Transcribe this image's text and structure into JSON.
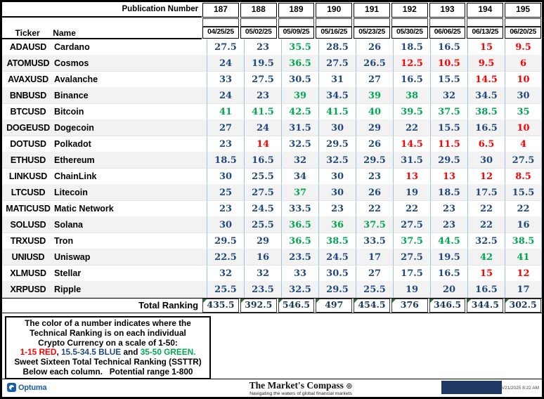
{
  "header": {
    "publication_label": "Publication Number",
    "ticker_label": "Ticker",
    "name_label": "Name",
    "publication_numbers": [
      "187",
      "188",
      "189",
      "190",
      "191",
      "192",
      "193",
      "194",
      "195"
    ],
    "dates": [
      "04/25/25",
      "05/02/25",
      "05/09/25",
      "05/16/25",
      "05/23/25",
      "05/30/25",
      "06/06/25",
      "06/13/25",
      "06/20/25"
    ]
  },
  "colors": {
    "red": "#FE0000",
    "blue": "#1F497D",
    "green": "#00A651",
    "total_navy": "#17375E"
  },
  "rows": [
    {
      "ticker": "ADAUSD",
      "name": "Cardano",
      "values": [
        "27.5",
        "23",
        "35.5",
        "28.5",
        "26",
        "18.5",
        "16.5",
        "15",
        "9.5"
      ],
      "colors": [
        "b",
        "b",
        "g",
        "b",
        "b",
        "b",
        "b",
        "r",
        "r"
      ]
    },
    {
      "ticker": "ATOMUSD",
      "name": "Cosmos",
      "values": [
        "24",
        "19.5",
        "36.5",
        "27.5",
        "26.5",
        "12.5",
        "10.5",
        "9.5",
        "6"
      ],
      "colors": [
        "b",
        "b",
        "g",
        "b",
        "b",
        "r",
        "r",
        "r",
        "r"
      ]
    },
    {
      "ticker": "AVAXUSD",
      "name": "Avalanche",
      "values": [
        "33",
        "27.5",
        "30.5",
        "31",
        "27",
        "16.5",
        "15.5",
        "14.5",
        "10"
      ],
      "colors": [
        "b",
        "b",
        "b",
        "b",
        "b",
        "b",
        "b",
        "r",
        "r"
      ]
    },
    {
      "ticker": "BNBUSD",
      "name": "Binance",
      "values": [
        "24",
        "23",
        "39",
        "34.5",
        "39",
        "38",
        "32",
        "34.5",
        "30"
      ],
      "colors": [
        "b",
        "b",
        "g",
        "b",
        "g",
        "g",
        "b",
        "b",
        "b"
      ]
    },
    {
      "ticker": "BTCUSD",
      "name": "Bitcoin",
      "values": [
        "41",
        "41.5",
        "42.5",
        "41.5",
        "40",
        "39.5",
        "37.5",
        "38.5",
        "35"
      ],
      "colors": [
        "g",
        "g",
        "g",
        "g",
        "g",
        "g",
        "g",
        "g",
        "g"
      ]
    },
    {
      "ticker": "DOGEUSD",
      "name": "Dogecoin",
      "values": [
        "27",
        "24",
        "31.5",
        "30",
        "29",
        "22",
        "15.5",
        "16.5",
        "10"
      ],
      "colors": [
        "b",
        "b",
        "b",
        "b",
        "b",
        "b",
        "b",
        "b",
        "r"
      ]
    },
    {
      "ticker": "DOTUSD",
      "name": "Polkadot",
      "values": [
        "23",
        "14",
        "32.5",
        "29.5",
        "26",
        "14.5",
        "11.5",
        "6.5",
        "4"
      ],
      "colors": [
        "b",
        "r",
        "b",
        "b",
        "b",
        "r",
        "r",
        "r",
        "r"
      ]
    },
    {
      "ticker": "ETHUSD",
      "name": "Ethereum",
      "values": [
        "18.5",
        "16.5",
        "32",
        "32.5",
        "29.5",
        "31.5",
        "29.5",
        "30",
        "27.5"
      ],
      "colors": [
        "b",
        "b",
        "b",
        "b",
        "b",
        "b",
        "b",
        "b",
        "b"
      ]
    },
    {
      "ticker": "LINKUSD",
      "name": "ChainLink",
      "values": [
        "30",
        "25.5",
        "34",
        "30",
        "23",
        "13",
        "13",
        "12",
        "8.5"
      ],
      "colors": [
        "b",
        "b",
        "b",
        "b",
        "b",
        "r",
        "r",
        "r",
        "r"
      ]
    },
    {
      "ticker": "LTCUSD",
      "name": "Litecoin",
      "values": [
        "25",
        "27.5",
        "37",
        "30",
        "26",
        "19",
        "18.5",
        "17.5",
        "15.5"
      ],
      "colors": [
        "b",
        "b",
        "g",
        "b",
        "b",
        "b",
        "b",
        "b",
        "b"
      ]
    },
    {
      "ticker": "MATICUSD",
      "name": "Matic Network",
      "values": [
        "23",
        "24.5",
        "33.5",
        "23",
        "22",
        "22",
        "23",
        "22",
        "22"
      ],
      "colors": [
        "b",
        "b",
        "b",
        "b",
        "b",
        "b",
        "b",
        "b",
        "b"
      ]
    },
    {
      "ticker": "SOLUSD",
      "name": "Solana",
      "values": [
        "30",
        "25.5",
        "36.5",
        "36",
        "37.5",
        "27.5",
        "23",
        "22",
        "16"
      ],
      "colors": [
        "b",
        "b",
        "g",
        "g",
        "g",
        "b",
        "b",
        "b",
        "b"
      ]
    },
    {
      "ticker": "TRXUSD",
      "name": "Tron",
      "values": [
        "29.5",
        "29",
        "36.5",
        "38.5",
        "33.5",
        "37.5",
        "44.5",
        "32.5",
        "38.5"
      ],
      "colors": [
        "b",
        "b",
        "g",
        "g",
        "b",
        "g",
        "g",
        "b",
        "g"
      ]
    },
    {
      "ticker": "UNIUSD",
      "name": "Uniswap",
      "values": [
        "22.5",
        "16",
        "23.5",
        "24.5",
        "17",
        "27.5",
        "19.5",
        "42",
        "41"
      ],
      "colors": [
        "b",
        "b",
        "b",
        "b",
        "b",
        "b",
        "b",
        "g",
        "g"
      ]
    },
    {
      "ticker": "XLMUSD",
      "name": "Stellar",
      "values": [
        "32",
        "32",
        "33",
        "30.5",
        "27",
        "17.5",
        "16.5",
        "15",
        "12"
      ],
      "colors": [
        "b",
        "b",
        "b",
        "b",
        "b",
        "b",
        "b",
        "r",
        "r"
      ]
    },
    {
      "ticker": "XRPUSD",
      "name": "Ripple",
      "values": [
        "25.5",
        "23.5",
        "32.5",
        "29.5",
        "25.5",
        "19",
        "20",
        "16.5",
        "17"
      ],
      "colors": [
        "b",
        "b",
        "b",
        "b",
        "b",
        "b",
        "b",
        "b",
        "b"
      ]
    }
  ],
  "total": {
    "label": "Total Ranking",
    "values": [
      "435.5",
      "392.5",
      "546.5",
      "497",
      "454.5",
      "376",
      "346.5",
      "344.5",
      "302.5"
    ]
  },
  "legend": {
    "lines": [
      [
        {
          "t": "The color of a number indicates where the",
          "c": "k"
        }
      ],
      [
        {
          "t": "Technical Ranking is on each individual",
          "c": "k"
        }
      ],
      [
        {
          "t": "Crypto Currency on a scale of 1-50:",
          "c": "k"
        }
      ],
      [
        {
          "t": "1-15 RED",
          "c": "r"
        },
        {
          "t": ", ",
          "c": "k"
        },
        {
          "t": "15.5-34.5 BLUE",
          "c": "b"
        },
        {
          "t": " and ",
          "c": "k"
        },
        {
          "t": "35-50 GREEN.",
          "c": "g"
        }
      ],
      [
        {
          "t": "Sweet Sixteen Total Technical Ranking (SSTTR)",
          "c": "k"
        }
      ],
      [
        {
          "t": "Below each column.   Potential range 1-800",
          "c": "k"
        }
      ]
    ]
  },
  "footer": {
    "optuma": "Optuma",
    "compass_title": "The Market's Compass",
    "compass_glyph": "⊛",
    "compass_tagline": "Navigating the waters of global financial markets",
    "timestamp": "6/21/2025 8:22 AM"
  }
}
